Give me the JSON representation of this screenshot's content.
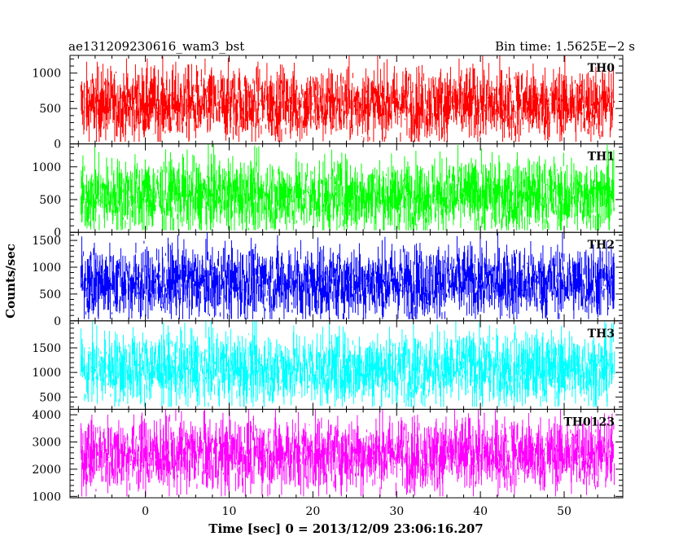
{
  "chart_data": {
    "type": "line",
    "title": "ae131209230616_wam3_bst",
    "subtitle": "Bin time: 1.5625E−2 s",
    "xlabel": "Time [sec] 0 = 2013/12/09 23:06:16.207",
    "ylabel": "Counts/sec",
    "xlim": [
      -9,
      57
    ],
    "x_ticks": [
      0,
      10,
      20,
      30,
      40,
      50
    ],
    "x_range_data": [
      -7.7,
      56
    ],
    "bin_time_s": 0.015625,
    "series": [
      {
        "name": "TH0",
        "color": "#ff0000",
        "ylim": [
          0,
          1250
        ],
        "y_ticks": [
          0,
          500,
          1000
        ],
        "mean": 560,
        "min": 30,
        "max": 1250
      },
      {
        "name": "TH1",
        "color": "#00ff00",
        "ylim": [
          0,
          1350
        ],
        "y_ticks": [
          0,
          500,
          1000
        ],
        "mean": 560,
        "min": 30,
        "max": 1350
      },
      {
        "name": "TH2",
        "color": "#0000ff",
        "ylim": [
          0,
          1650
        ],
        "y_ticks": [
          0,
          500,
          1000,
          1500
        ],
        "mean": 720,
        "min": 30,
        "max": 1650
      },
      {
        "name": "TH3",
        "color": "#00ffff",
        "ylim": [
          250,
          2050
        ],
        "y_ticks": [
          500,
          1000,
          1500
        ],
        "mean": 1080,
        "min": 300,
        "max": 2050
      },
      {
        "name": "TH0123",
        "color": "#ff00ff",
        "ylim": [
          950,
          4200
        ],
        "y_ticks": [
          1000,
          2000,
          3000,
          4000
        ],
        "mean": 2550,
        "min": 1000,
        "max": 4200
      }
    ]
  }
}
